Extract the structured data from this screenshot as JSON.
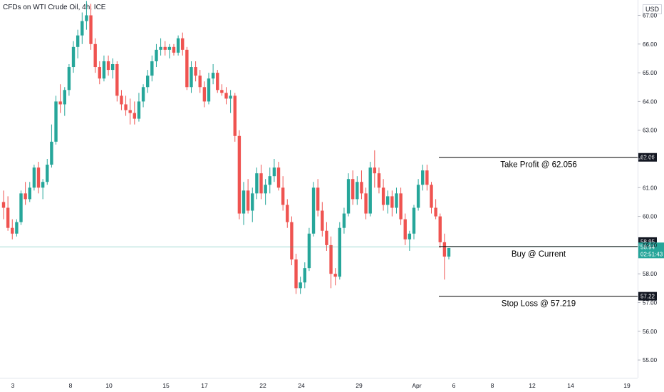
{
  "header": {
    "symbol_title": "CFDs on WTI Crude Oil, 4h, ICE",
    "currency": "USD"
  },
  "chart_data": {
    "type": "candlestick",
    "ylim": [
      54.5,
      67.5
    ],
    "y_ticks": [
      "55.00",
      "56.00",
      "57.00",
      "58.00",
      "59.00",
      "60.00",
      "61.00",
      "62.00",
      "63.00",
      "64.00",
      "65.00",
      "66.00",
      "67.00"
    ],
    "x_ticks": [
      "3",
      "8",
      "10",
      "15",
      "17",
      "22",
      "24",
      "29",
      "Apr",
      "6",
      "8",
      "12",
      "14",
      "19"
    ],
    "annotations": [
      {
        "label": "Take Profit @ 62.056",
        "price": 62.056,
        "badge": "62.06"
      },
      {
        "label": "Buy @ Current",
        "price": 58.95,
        "badge": "58.95"
      },
      {
        "label": "Stop Loss @ 57.219",
        "price": 57.22,
        "badge": "57.22"
      }
    ],
    "current_price": {
      "value": "58.94",
      "countdown": "02:51:43"
    },
    "colors": {
      "up": "#26a69a",
      "down": "#ef5350",
      "current_line": "#26a69a"
    },
    "candles": [
      [
        60.5,
        60.9,
        59.9,
        60.3
      ],
      [
        60.3,
        60.7,
        59.5,
        59.6
      ],
      [
        59.6,
        59.9,
        59.2,
        59.4
      ],
      [
        59.4,
        59.9,
        59.3,
        59.8
      ],
      [
        59.8,
        60.9,
        59.7,
        60.8
      ],
      [
        60.8,
        61.2,
        60.4,
        60.6
      ],
      [
        60.6,
        61.2,
        60.5,
        61.0
      ],
      [
        61.0,
        61.8,
        60.9,
        61.7
      ],
      [
        61.7,
        61.9,
        60.8,
        61.0
      ],
      [
        61.0,
        61.3,
        60.6,
        61.2
      ],
      [
        61.2,
        62.0,
        61.1,
        61.8
      ],
      [
        61.8,
        63.2,
        61.7,
        62.6
      ],
      [
        62.6,
        64.2,
        62.5,
        64.0
      ],
      [
        64.0,
        64.6,
        63.6,
        63.9
      ],
      [
        63.9,
        64.5,
        63.5,
        64.4
      ],
      [
        64.4,
        65.3,
        64.2,
        65.2
      ],
      [
        65.2,
        66.1,
        65.0,
        65.9
      ],
      [
        65.9,
        66.5,
        65.5,
        66.3
      ],
      [
        66.3,
        67.1,
        66.0,
        66.8
      ],
      [
        66.8,
        67.5,
        66.5,
        67.0
      ],
      [
        67.0,
        67.4,
        65.8,
        66.0
      ],
      [
        66.0,
        66.2,
        65.0,
        65.2
      ],
      [
        65.2,
        65.4,
        64.6,
        64.8
      ],
      [
        64.8,
        65.6,
        64.7,
        65.4
      ],
      [
        65.4,
        65.6,
        64.9,
        65.1
      ],
      [
        65.1,
        65.5,
        64.8,
        65.3
      ],
      [
        65.3,
        65.4,
        64.0,
        64.2
      ],
      [
        64.2,
        64.4,
        63.7,
        63.9
      ],
      [
        63.9,
        64.2,
        63.5,
        63.7
      ],
      [
        63.7,
        64.1,
        63.2,
        63.6
      ],
      [
        63.6,
        64.0,
        63.2,
        63.4
      ],
      [
        63.4,
        64.3,
        63.3,
        64.0
      ],
      [
        64.0,
        64.6,
        63.8,
        64.5
      ],
      [
        64.5,
        65.1,
        64.3,
        64.9
      ],
      [
        64.9,
        65.6,
        64.7,
        65.4
      ],
      [
        65.4,
        66.0,
        65.2,
        65.8
      ],
      [
        65.8,
        66.2,
        65.6,
        65.9
      ],
      [
        65.9,
        66.1,
        65.6,
        65.8
      ],
      [
        65.8,
        66.0,
        65.5,
        65.9
      ],
      [
        65.9,
        66.0,
        65.6,
        65.7
      ],
      [
        65.7,
        66.3,
        65.6,
        66.2
      ],
      [
        66.2,
        66.4,
        65.6,
        65.8
      ],
      [
        65.8,
        65.9,
        64.4,
        64.5
      ],
      [
        64.5,
        65.4,
        64.3,
        65.2
      ],
      [
        65.2,
        65.4,
        64.7,
        64.9
      ],
      [
        64.9,
        65.1,
        64.3,
        64.5
      ],
      [
        64.5,
        64.7,
        63.8,
        64.0
      ],
      [
        64.0,
        65.0,
        63.9,
        64.8
      ],
      [
        64.8,
        65.3,
        64.6,
        65.0
      ],
      [
        65.0,
        65.1,
        64.3,
        64.4
      ],
      [
        64.4,
        64.6,
        64.2,
        64.3
      ],
      [
        64.3,
        64.5,
        63.9,
        64.1
      ],
      [
        64.1,
        64.4,
        63.6,
        64.2
      ],
      [
        64.2,
        64.3,
        62.6,
        62.8
      ],
      [
        62.8,
        63.0,
        59.9,
        60.1
      ],
      [
        60.1,
        61.2,
        59.7,
        60.9
      ],
      [
        60.9,
        61.3,
        60.1,
        60.2
      ],
      [
        60.2,
        61.0,
        59.8,
        60.8
      ],
      [
        60.8,
        61.7,
        60.6,
        61.5
      ],
      [
        61.5,
        61.8,
        60.6,
        60.8
      ],
      [
        60.8,
        61.3,
        60.4,
        61.1
      ],
      [
        61.1,
        61.7,
        60.8,
        61.4
      ],
      [
        61.4,
        62.0,
        61.2,
        61.7
      ],
      [
        61.7,
        61.9,
        60.9,
        61.0
      ],
      [
        61.0,
        61.4,
        60.2,
        60.4
      ],
      [
        60.4,
        60.6,
        59.6,
        59.8
      ],
      [
        59.8,
        60.0,
        58.3,
        58.5
      ],
      [
        58.5,
        58.7,
        57.3,
        57.5
      ],
      [
        57.5,
        57.9,
        57.3,
        57.7
      ],
      [
        57.7,
        58.4,
        57.5,
        58.2
      ],
      [
        58.2,
        59.6,
        58.1,
        59.4
      ],
      [
        59.4,
        61.2,
        59.3,
        61.0
      ],
      [
        61.0,
        61.3,
        60.0,
        60.2
      ],
      [
        60.2,
        60.5,
        59.3,
        59.5
      ],
      [
        59.5,
        59.8,
        58.8,
        59.0
      ],
      [
        59.0,
        59.3,
        57.5,
        58.0
      ],
      [
        58.0,
        58.2,
        57.6,
        57.9
      ],
      [
        57.9,
        59.8,
        57.8,
        59.6
      ],
      [
        59.6,
        60.3,
        59.4,
        60.1
      ],
      [
        60.1,
        61.5,
        60.0,
        61.3
      ],
      [
        61.3,
        61.6,
        60.4,
        60.6
      ],
      [
        60.6,
        61.4,
        60.4,
        61.2
      ],
      [
        61.2,
        61.6,
        60.6,
        60.8
      ],
      [
        60.8,
        61.0,
        59.9,
        60.1
      ],
      [
        60.1,
        61.9,
        60.0,
        61.7
      ],
      [
        61.7,
        62.3,
        61.0,
        61.5
      ],
      [
        61.5,
        61.7,
        60.8,
        61.0
      ],
      [
        61.0,
        61.3,
        60.2,
        60.4
      ],
      [
        60.4,
        60.9,
        60.1,
        60.7
      ],
      [
        60.7,
        60.9,
        60.0,
        60.3
      ],
      [
        60.3,
        61.0,
        60.1,
        60.8
      ],
      [
        60.8,
        61.0,
        59.7,
        59.9
      ],
      [
        59.9,
        60.1,
        59.0,
        59.2
      ],
      [
        59.2,
        59.5,
        58.8,
        59.4
      ],
      [
        59.4,
        60.4,
        59.2,
        60.3
      ],
      [
        60.3,
        61.3,
        60.2,
        61.1
      ],
      [
        61.1,
        61.8,
        60.9,
        61.6
      ],
      [
        61.6,
        61.8,
        60.9,
        61.1
      ],
      [
        61.1,
        61.2,
        60.1,
        60.3
      ],
      [
        60.3,
        60.6,
        59.9,
        60.0
      ],
      [
        60.0,
        60.1,
        58.9,
        59.1
      ],
      [
        59.1,
        59.4,
        57.8,
        58.6
      ],
      [
        58.6,
        58.9,
        58.5,
        58.9
      ]
    ]
  }
}
